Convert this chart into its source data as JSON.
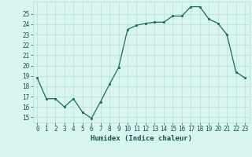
{
  "x": [
    0,
    1,
    2,
    3,
    4,
    5,
    6,
    7,
    8,
    9,
    10,
    11,
    12,
    13,
    14,
    15,
    16,
    17,
    18,
    19,
    20,
    21,
    22,
    23
  ],
  "y": [
    18.8,
    16.8,
    16.8,
    16.0,
    16.8,
    15.5,
    14.9,
    16.5,
    18.2,
    19.8,
    23.5,
    23.9,
    24.1,
    24.2,
    24.2,
    24.8,
    24.8,
    25.7,
    25.7,
    24.5,
    24.1,
    23.0,
    19.4,
    18.8
  ],
  "xlabel": "Humidex (Indice chaleur)",
  "ylabel": "",
  "xlim": [
    -0.5,
    23.5
  ],
  "ylim": [
    14.5,
    26.2
  ],
  "yticks": [
    15,
    16,
    17,
    18,
    19,
    20,
    21,
    22,
    23,
    24,
    25
  ],
  "xticks": [
    0,
    1,
    2,
    3,
    4,
    5,
    6,
    7,
    8,
    9,
    10,
    11,
    12,
    13,
    14,
    15,
    16,
    17,
    18,
    19,
    20,
    21,
    22,
    23
  ],
  "line_color": "#1a6b5e",
  "marker_color": "#1a6b5e",
  "bg_color": "#d8f5f0",
  "grid_color": "#b8ddd8",
  "label_color": "#1a5050",
  "tick_fontsize": 5.5,
  "xlabel_fontsize": 6.5
}
